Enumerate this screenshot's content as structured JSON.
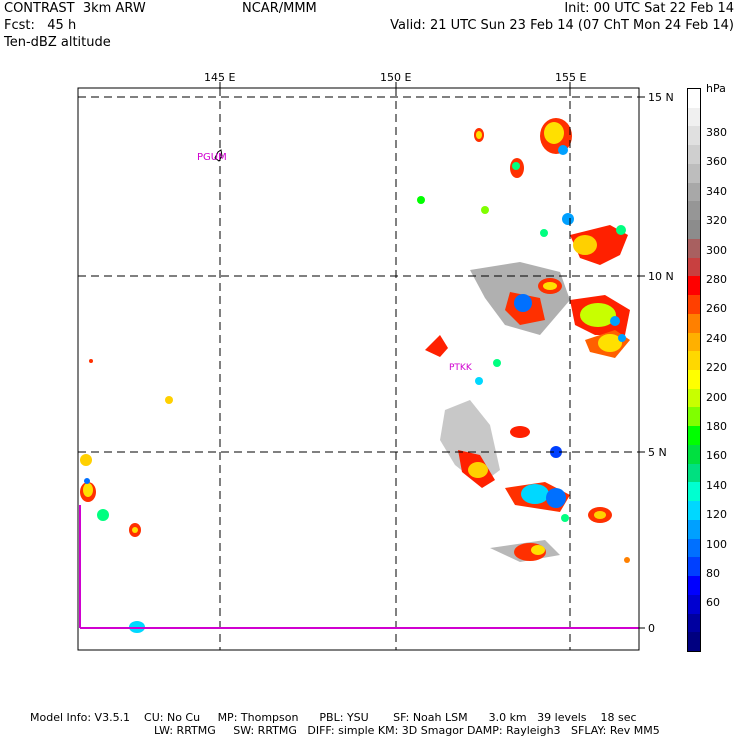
{
  "header": {
    "left1": "CONTRAST  3km ARW",
    "left2": "Fcst:   45 h",
    "left3": "Ten-dBZ altitude",
    "center": "NCAR/MMM",
    "right1": "Init: 00 UTC Sat 22 Feb 14",
    "right2": "Valid: 21 UTC Sun 23 Feb 14 (07 ChT Mon 24 Feb 14)"
  },
  "map": {
    "lon_labels": [
      "145 E",
      "150 E",
      "155 E"
    ],
    "lat_labels": [
      "15 N",
      "10 N",
      "5 N",
      "0"
    ],
    "stations": [
      "PGUM",
      "PTKK"
    ]
  },
  "colorbar": {
    "unit": "hPa",
    "labels": [
      "380",
      "360",
      "340",
      "320",
      "300",
      "280",
      "260",
      "240",
      "220",
      "200",
      "180",
      "160",
      "140",
      "120",
      "100",
      "80",
      "60"
    ],
    "colors": [
      "#ffffff",
      "#f0f0f0",
      "#e0e0e0",
      "#cfcfcf",
      "#bdbdbd",
      "#a8a8a8",
      "#969696",
      "#8c8c8c",
      "#a86060",
      "#c84040",
      "#ff0000",
      "#ff4000",
      "#ff8000",
      "#ffb000",
      "#ffd800",
      "#ffff00",
      "#c8ff00",
      "#80ff00",
      "#00ff00",
      "#00e040",
      "#00e080",
      "#00ffd0",
      "#00d8ff",
      "#00a0ff",
      "#0070ff",
      "#0040ff",
      "#0000ff",
      "#0000d0",
      "#0000a0",
      "#000080"
    ]
  },
  "footer": {
    "line1": "Model Info: V3.5.1    CU: No Cu     MP: Thompson      PBL: YSU       SF: Noah LSM      3.0 km   39 levels    18 sec",
    "line2": "LW: RRTMG     SW: RRTMG   DIFF: simple KM: 3D Smagor DAMP: Rayleigh3   SFLAY: Rev MM5"
  }
}
